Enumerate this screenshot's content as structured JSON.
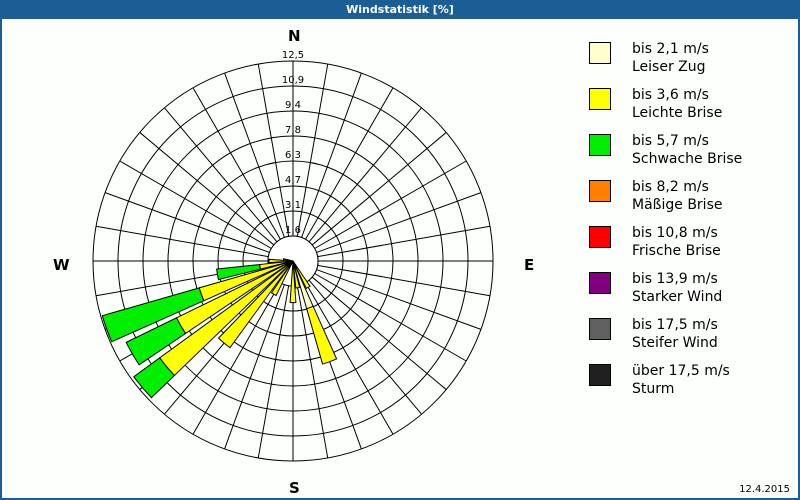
{
  "window": {
    "title": "Windstatistik [%]",
    "date": "12.4.2015",
    "accent_color": "#1b5e96"
  },
  "compass": {
    "north": "N",
    "east": "E",
    "south": "S",
    "west": "W"
  },
  "legend": [
    {
      "range": "bis 2,1 m/s",
      "label": "Leiser Zug",
      "color": "#ffffcc"
    },
    {
      "range": "bis 3,6 m/s",
      "label": "Leichte Brise",
      "color": "#ffff00"
    },
    {
      "range": "bis 5,7 m/s",
      "label": "Schwache Brise",
      "color": "#00ee00"
    },
    {
      "range": "bis 8,2 m/s",
      "label": "Mäßige Brise",
      "color": "#ff8000"
    },
    {
      "range": "bis 10,8 m/s",
      "label": "Frische Brise",
      "color": "#ff0000"
    },
    {
      "range": "bis 13,9 m/s",
      "label": "Starker Wind",
      "color": "#800080"
    },
    {
      "range": "bis 17,5 m/s",
      "label": "Steifer Wind",
      "color": "#606060"
    },
    {
      "range": "über 17,5 m/s",
      "label": "Sturm",
      "color": "#202020"
    }
  ],
  "chart_data": {
    "type": "polar-stacked-bar (wind rose)",
    "title": "Windstatistik [%]",
    "radial_unit": "%",
    "radial_ticks": [
      "1,6",
      "3,1",
      "4,7",
      "6,3",
      "7,8",
      "9,4",
      "10,9",
      "12,5"
    ],
    "radial_max": 12.5,
    "direction_step_deg": 10,
    "compass_labels": [
      "N",
      "E",
      "S",
      "W"
    ],
    "series": [
      "bis 2,1 m/s",
      "bis 3,6 m/s",
      "bis 5,7 m/s",
      "bis 8,2 m/s",
      "bis 10,8 m/s",
      "bis 13,9 m/s",
      "bis 17,5 m/s",
      "über 17,5 m/s"
    ],
    "bars": [
      {
        "direction_deg": 160,
        "segments": [
          {
            "class": 0,
            "value": 3.1
          },
          {
            "class": 1,
            "value": 3.6
          }
        ]
      },
      {
        "direction_deg": 150,
        "segments": [
          {
            "class": 0,
            "value": 0.3
          },
          {
            "class": 1,
            "value": 1.6
          }
        ]
      },
      {
        "direction_deg": 170,
        "segments": [
          {
            "class": 1,
            "value": 1.7
          }
        ]
      },
      {
        "direction_deg": 180,
        "segments": [
          {
            "class": 1,
            "value": 2.6
          }
        ]
      },
      {
        "direction_deg": 210,
        "segments": [
          {
            "class": 1,
            "value": 2.4
          }
        ]
      },
      {
        "direction_deg": 220,
        "segments": [
          {
            "class": 1,
            "value": 6.7
          }
        ]
      },
      {
        "direction_deg": 230,
        "segments": [
          {
            "class": 1,
            "value": 10.3
          },
          {
            "class": 2,
            "value": 2.0
          }
        ]
      },
      {
        "direction_deg": 240,
        "segments": [
          {
            "class": 1,
            "value": 8.1
          },
          {
            "class": 2,
            "value": 3.5
          }
        ]
      },
      {
        "direction_deg": 250,
        "segments": [
          {
            "class": 1,
            "value": 6.1
          },
          {
            "class": 2,
            "value": 6.3
          }
        ]
      },
      {
        "direction_deg": 260,
        "segments": [
          {
            "class": 1,
            "value": 2.1
          },
          {
            "class": 2,
            "value": 2.7
          }
        ]
      },
      {
        "direction_deg": 270,
        "segments": [
          {
            "class": 1,
            "value": 1.5
          }
        ]
      },
      {
        "direction_deg": 280,
        "segments": [
          {
            "class": 1,
            "value": 0.6
          }
        ]
      }
    ],
    "legend_position": "right",
    "grid": true
  }
}
